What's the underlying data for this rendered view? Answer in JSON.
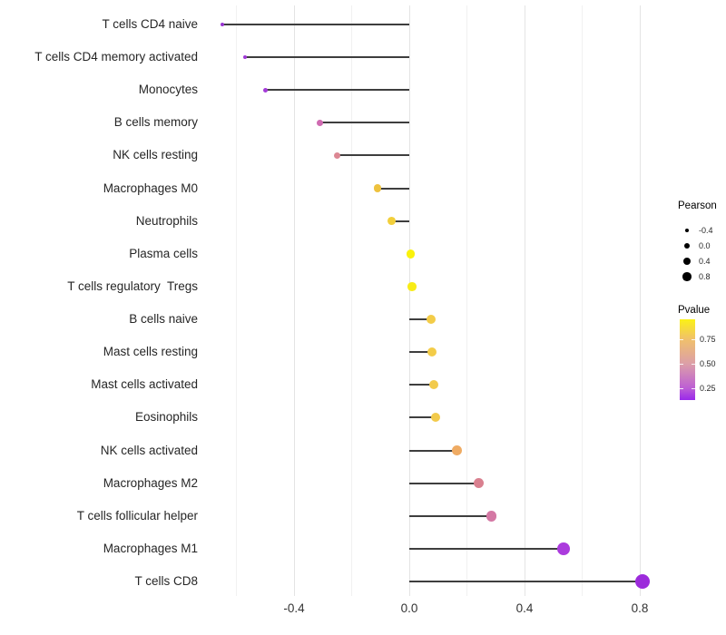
{
  "chart_data": {
    "type": "scatter",
    "subtype": "lollipop",
    "orientation": "horizontal",
    "title": "",
    "xlabel": "",
    "ylabel": "",
    "grid": true,
    "xlim": [
      -0.72,
      0.9
    ],
    "x_tick_labels": [
      "-0.4",
      "0.0",
      "0.4",
      "0.8"
    ],
    "x_tick_values": [
      -0.4,
      0.0,
      0.4,
      0.8
    ],
    "grid_minor_values": [
      -0.6,
      -0.2,
      0.2,
      0.6
    ],
    "categories": [
      "T cells CD4 naive",
      "T cells CD4 memory activated",
      "Monocytes",
      "B cells memory",
      "NK cells resting",
      "Macrophages M0",
      "Neutrophils",
      "Plasma cells",
      "T cells regulatory  Tregs",
      "B cells naive",
      "Mast cells resting",
      "Mast cells activated",
      "Eosinophils",
      "NK cells activated",
      "Macrophages M2",
      "T cells follicular helper",
      "Macrophages M1",
      "T cells CD8"
    ],
    "series": [
      {
        "name": "Pearson",
        "values": [
          -0.65,
          -0.57,
          -0.5,
          -0.31,
          -0.25,
          -0.11,
          -0.06,
          0.005,
          0.01,
          0.075,
          0.08,
          0.085,
          0.09,
          0.165,
          0.24,
          0.285,
          0.535,
          0.81
        ]
      }
    ],
    "point_colors": [
      "#9733D1",
      "#9F38D6",
      "#A43BD8",
      "#CF6BB1",
      "#DC8793",
      "#EEC23E",
      "#F2CF3B",
      "#FAF20C",
      "#F8EC16",
      "#F3CC48",
      "#F3CC48",
      "#F2CA4B",
      "#F2CA4B",
      "#EFAB63",
      "#D9808F",
      "#D478A4",
      "#AB3BDD",
      "#9C2BDB"
    ],
    "stem_color": "#3E3E3E",
    "size_legend": {
      "title": "Pearson",
      "entries": [
        "-0.4",
        "0.0",
        "0.4",
        "0.8"
      ],
      "dot_color": "#000000"
    },
    "color_legend": {
      "title": "Pvalue",
      "tick_labels": [
        "0.75",
        "0.50",
        "0.25"
      ],
      "gradient_top_to_bottom": [
        "#FBF116",
        "#F0C06C",
        "#DC9FA8",
        "#BD5FD4",
        "#9929EA"
      ]
    },
    "legend_position": "right"
  }
}
